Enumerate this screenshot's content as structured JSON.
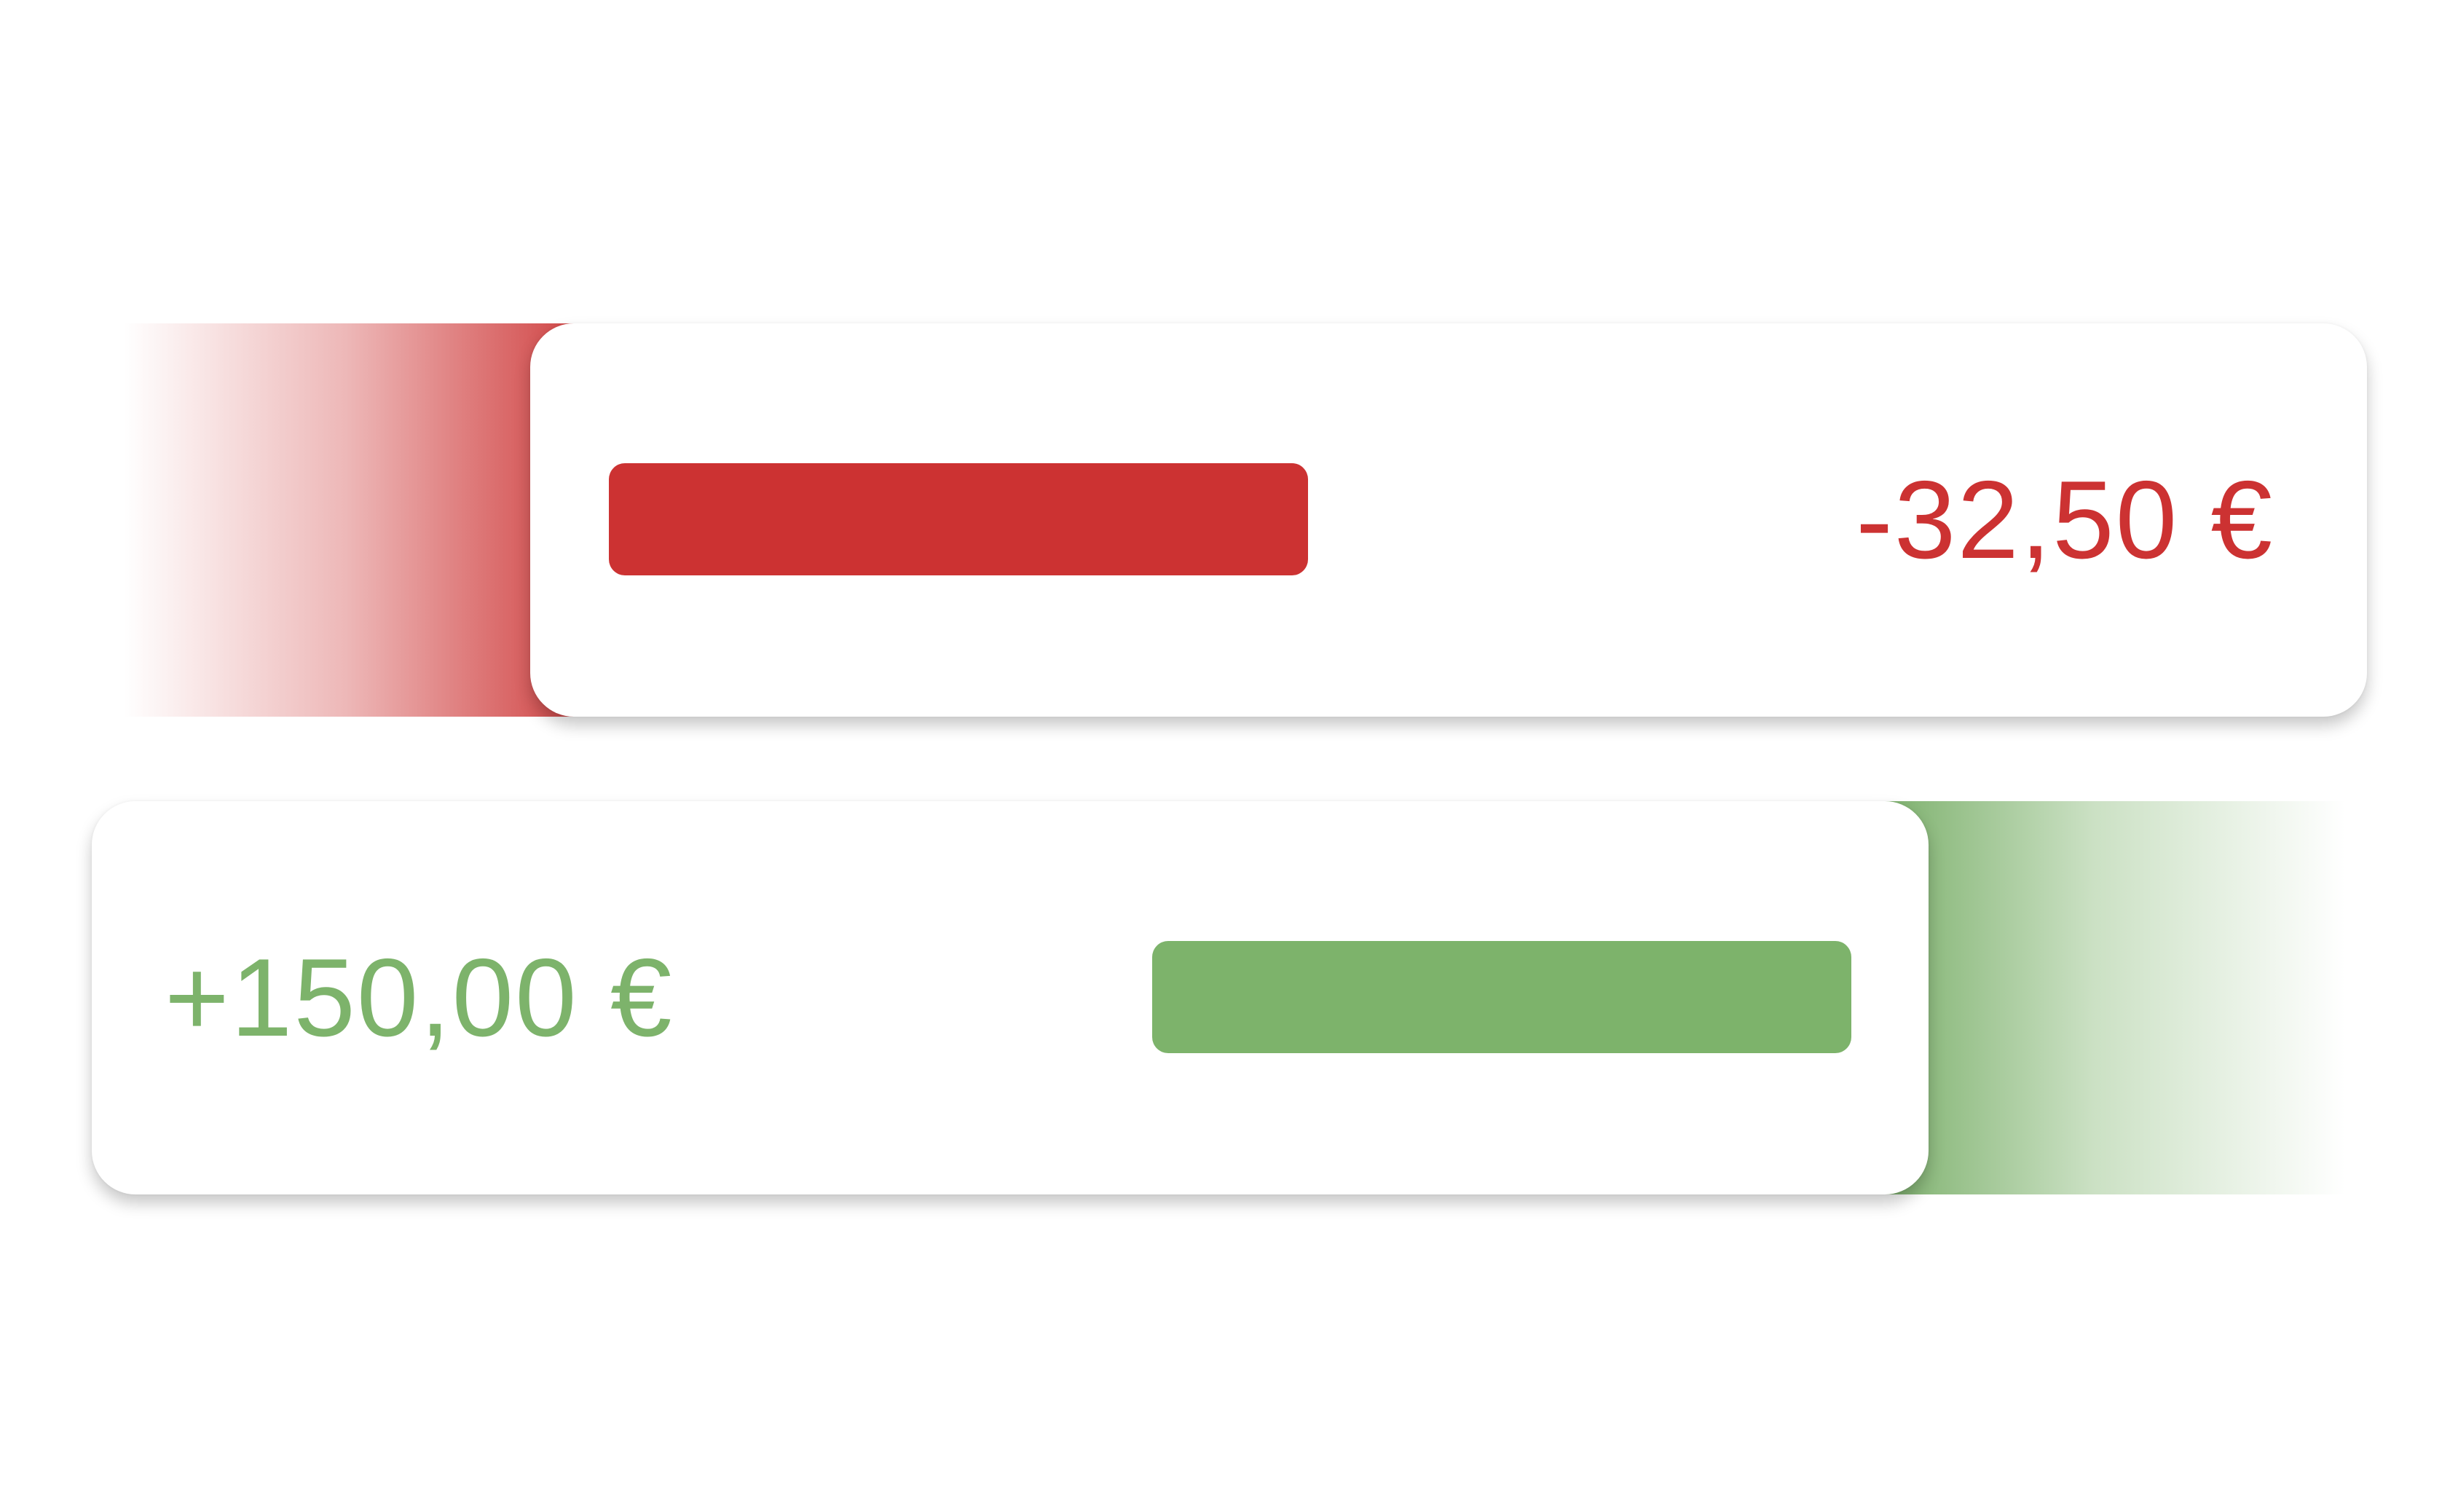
{
  "transactions": [
    {
      "type": "expense",
      "amount": "-32,50 €",
      "color": "#cc3232",
      "swipe_direction": "right"
    },
    {
      "type": "income",
      "amount": "+150,00 €",
      "color": "#7db36b",
      "swipe_direction": "left"
    }
  ]
}
